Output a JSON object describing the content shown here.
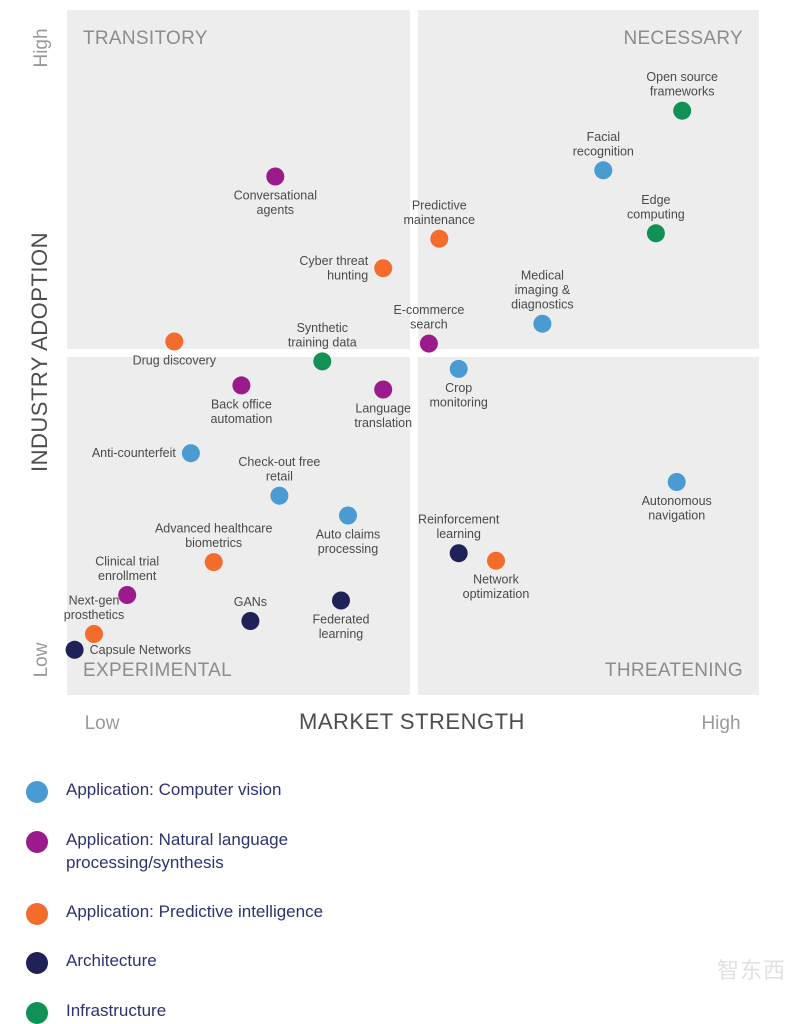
{
  "chart_data": {
    "type": "scatter",
    "xlabel": "MARKET STRENGTH",
    "ylabel": "INDUSTRY ADOPTION",
    "x_low_label": "Low",
    "x_high_label": "High",
    "y_low_label": "Low",
    "y_high_label": "High",
    "xlim": [
      0,
      100
    ],
    "ylim": [
      0,
      100
    ],
    "quadrants": {
      "top_left": "TRANSITORY",
      "top_right": "NECESSARY",
      "bottom_left": "EXPERIMENTAL",
      "bottom_right": "THREATENING"
    },
    "categories": [
      {
        "key": "cv",
        "name": "Application: Computer vision",
        "color": "#4a9bd2"
      },
      {
        "key": "nlp",
        "name": "Application: Natural language\nprocessing/synthesis",
        "color": "#9b1b8c"
      },
      {
        "key": "pi",
        "name": "Application: Predictive intelligence",
        "color": "#f36c2b"
      },
      {
        "key": "arch",
        "name": "Architecture",
        "color": "#1f2158"
      },
      {
        "key": "infra",
        "name": "Infrastructure",
        "color": "#119156"
      }
    ],
    "points": [
      {
        "label": "Open source\nframeworks",
        "category": "infra",
        "x": 88.9,
        "y": 85.3,
        "label_pos": "above"
      },
      {
        "label": "Facial\nrecognition",
        "category": "cv",
        "x": 77.5,
        "y": 76.6,
        "label_pos": "above"
      },
      {
        "label": "Edge\ncomputing",
        "category": "infra",
        "x": 85.1,
        "y": 67.4,
        "label_pos": "above"
      },
      {
        "label": "Conversational\nagents",
        "category": "nlp",
        "x": 30.1,
        "y": 75.7,
        "label_pos": "below"
      },
      {
        "label": "Predictive\nmaintenance",
        "category": "pi",
        "x": 53.8,
        "y": 66.6,
        "label_pos": "above"
      },
      {
        "label": "Cyber threat\nhunting",
        "category": "pi",
        "x": 45.7,
        "y": 62.3,
        "label_pos": "left"
      },
      {
        "label": "Medical\nimaging &\ndiagnostics",
        "category": "cv",
        "x": 68.7,
        "y": 54.2,
        "label_pos": "above"
      },
      {
        "label": "E-commerce\nsearch",
        "category": "nlp",
        "x": 52.3,
        "y": 51.3,
        "label_pos": "above"
      },
      {
        "label": "Drug discovery",
        "category": "pi",
        "x": 15.5,
        "y": 51.6,
        "label_pos": "below"
      },
      {
        "label": "Synthetic\ntraining data",
        "category": "infra",
        "x": 36.9,
        "y": 48.7,
        "label_pos": "above"
      },
      {
        "label": "Crop\nmonitoring",
        "category": "cv",
        "x": 56.6,
        "y": 47.6,
        "label_pos": "below"
      },
      {
        "label": "Back office\nautomation",
        "category": "nlp",
        "x": 25.2,
        "y": 45.2,
        "label_pos": "below"
      },
      {
        "label": "Language\ntranslation",
        "category": "nlp",
        "x": 45.7,
        "y": 44.6,
        "label_pos": "below"
      },
      {
        "label": "Anti-counterfeit",
        "category": "cv",
        "x": 17.9,
        "y": 35.3,
        "label_pos": "left"
      },
      {
        "label": "Check-out free\nretail",
        "category": "cv",
        "x": 30.7,
        "y": 29.1,
        "label_pos": "above"
      },
      {
        "label": "Autonomous\nnavigation",
        "category": "cv",
        "x": 88.1,
        "y": 31.1,
        "label_pos": "below"
      },
      {
        "label": "Auto claims\nprocessing",
        "category": "cv",
        "x": 40.6,
        "y": 26.2,
        "label_pos": "below"
      },
      {
        "label": "Advanced healthcare\nbiometrics",
        "category": "pi",
        "x": 21.2,
        "y": 19.4,
        "label_pos": "above"
      },
      {
        "label": "Reinforcement\nlearning",
        "category": "arch",
        "x": 56.6,
        "y": 20.7,
        "label_pos": "above"
      },
      {
        "label": "Network\noptimization",
        "category": "pi",
        "x": 62.0,
        "y": 19.6,
        "label_pos": "below"
      },
      {
        "label": "Clinical trial\nenrollment",
        "category": "nlp",
        "x": 8.7,
        "y": 14.6,
        "label_pos": "above"
      },
      {
        "label": "GANs",
        "category": "arch",
        "x": 26.5,
        "y": 10.8,
        "label_pos": "above"
      },
      {
        "label": "Federated\nlearning",
        "category": "arch",
        "x": 39.6,
        "y": 13.8,
        "label_pos": "below"
      },
      {
        "label": "Next-gen\nprosthetics",
        "category": "pi",
        "x": 3.9,
        "y": 8.9,
        "label_pos": "above"
      },
      {
        "label": "Capsule Networks",
        "category": "arch",
        "x": 1.1,
        "y": 6.6,
        "label_pos": "right"
      }
    ]
  },
  "watermark": "智东西"
}
